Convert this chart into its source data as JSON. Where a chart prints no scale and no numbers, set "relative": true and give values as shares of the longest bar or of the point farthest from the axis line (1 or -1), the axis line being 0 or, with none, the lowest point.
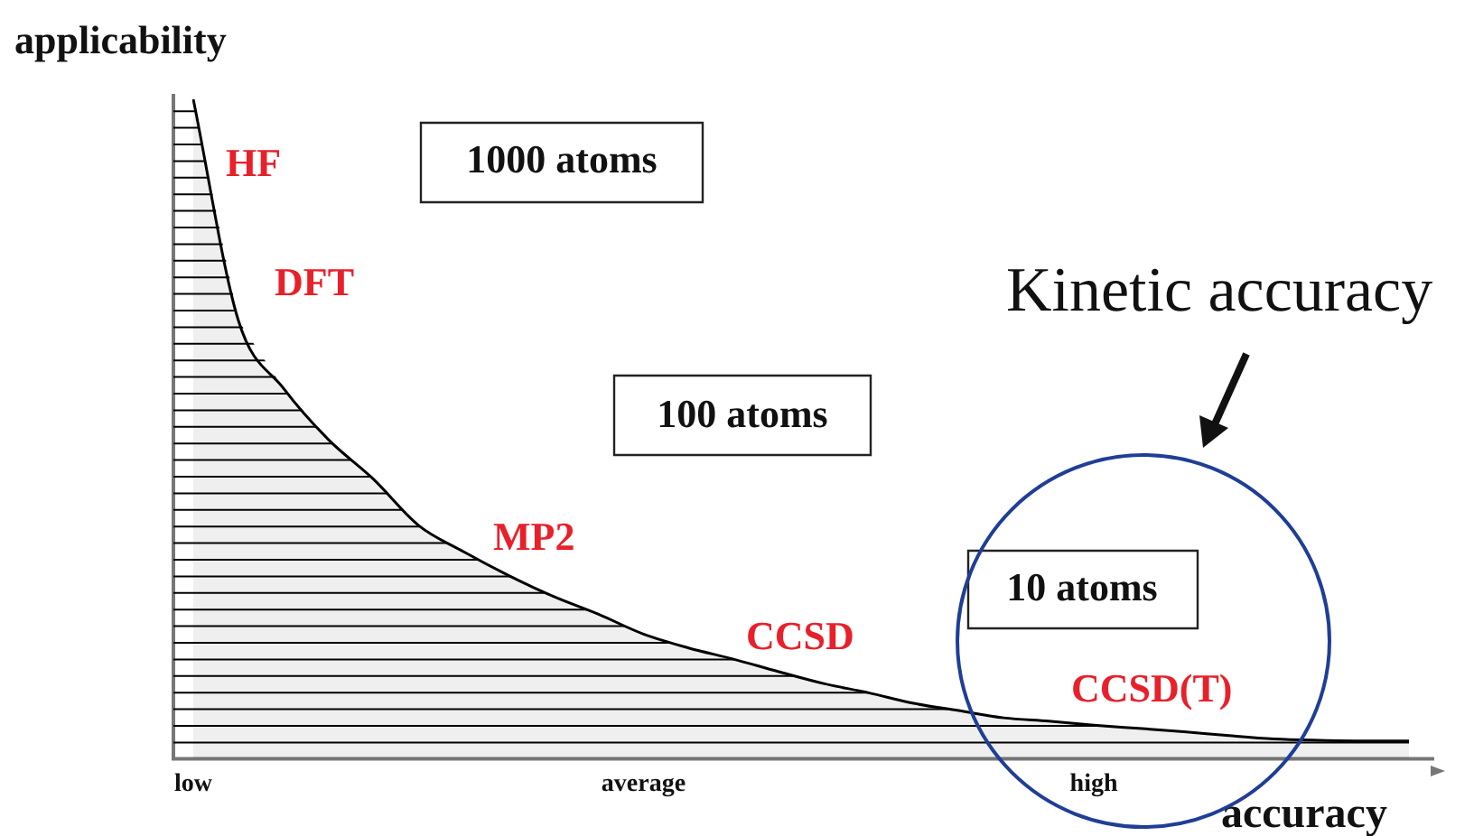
{
  "chart_data": {
    "type": "area",
    "relative": true,
    "xlabel": "accuracy",
    "ylabel": "applicability",
    "categories": [
      "low",
      null,
      null,
      null,
      null,
      null,
      null,
      null,
      null,
      null,
      "average",
      null,
      null,
      null,
      null,
      null,
      null,
      null,
      null,
      null,
      "high",
      null,
      null,
      null,
      null,
      null,
      null,
      null
    ],
    "series": [
      {
        "color": "#000000",
        "values": [
          1.0,
          0.665,
          0.562,
          0.484,
          0.424,
          0.354,
          0.314,
          0.278,
          0.246,
          0.219,
          0.189,
          0.168,
          0.151,
          0.132,
          0.114,
          0.1,
          0.084,
          0.073,
          0.062,
          0.057,
          0.051,
          0.046,
          0.041,
          0.035,
          0.03,
          0.028,
          0.027,
          0.027
        ]
      }
    ],
    "annotations": [
      "HF",
      "DFT",
      "MP2",
      "CCSD",
      "CCSD(T)",
      "1000 atoms",
      "100 atoms",
      "10 atoms",
      "Kinetic accuracy"
    ],
    "grid": false,
    "legend": false
  }
}
